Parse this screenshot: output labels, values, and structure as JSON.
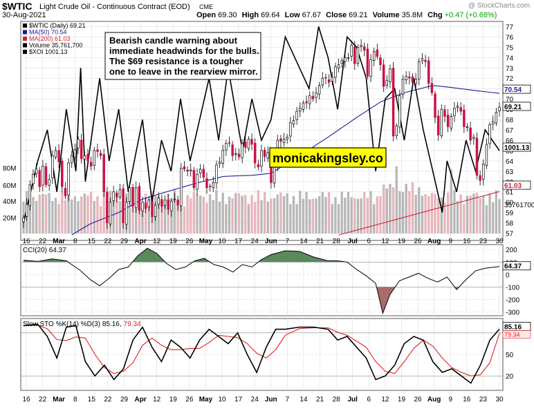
{
  "header": {
    "symbol": "$WTIC",
    "name": "Light Crude Oil - Continuous Contract (EOD)",
    "exchange": "CME",
    "date": "30-Aug-2021",
    "watermark": "@ StockCharts.com",
    "open_label": "Open",
    "open": "69.30",
    "high_label": "High",
    "high": "69.64",
    "low_label": "Low",
    "low": "67.67",
    "close_label": "Close",
    "close": "69.21",
    "volume_label": "Volume",
    "volume": "35.8M",
    "chg_label": "Chg",
    "chg": "+0.47 (+0.68%)",
    "chg_color": "#00a000"
  },
  "legend": [
    {
      "text": "$WTIC (Daily) 69.21",
      "color": "#000000"
    },
    {
      "text": "MA(50) 70.54",
      "color": "#1a1a99"
    },
    {
      "text": "MA(200) 61.03",
      "color": "#cc2233"
    },
    {
      "text": "Volume 35,761,700",
      "color": "#000000"
    },
    {
      "text": "$XOI 1001.13",
      "color": "#000000"
    }
  ],
  "annotation": {
    "lines": [
      "Bearish candle warning about",
      "immediate headwinds for the bulls.",
      "The $69 resistance is a tougher",
      "one to leave in the rearview mirror."
    ]
  },
  "brand_label": "monicakingsley.co",
  "colors": {
    "up": "#ffffff",
    "down": "#cc1144",
    "ma50": "#1a1a99",
    "ma200": "#cc2233",
    "xoi": "#000000",
    "vol_up": "#b8b8b8",
    "vol_down": "#e8b5bc",
    "cci_fill": "#5a8a5a",
    "cci_fill_neg": "#a86a6a",
    "sto_k": "#000000",
    "sto_d": "#dd2222",
    "brand_bg": "#ffff00",
    "grid": "#dddddd"
  },
  "chart_data": [
    {
      "type": "candlestick",
      "title": "$WTIC (Daily) 69.21",
      "y_axis": {
        "ticks": [
          57,
          58,
          59,
          60,
          61,
          62,
          63,
          64,
          65,
          66,
          67,
          68,
          69,
          70,
          71,
          72,
          73,
          74,
          75,
          76,
          77
        ],
        "range": [
          56.3,
          77.5
        ]
      },
      "x_axis": {
        "ticks": [
          "16",
          "22",
          "Mar",
          "8",
          "15",
          "22",
          "29",
          "Apr",
          "12",
          "19",
          "26",
          "May",
          "10",
          "17",
          "24",
          "Jun",
          "7",
          "14",
          "21",
          "28",
          "Jul",
          "6",
          "12",
          "19",
          "26",
          "Aug",
          "9",
          "16",
          "23",
          "30"
        ]
      },
      "last_close_label": "69.21",
      "ma50_label": "70.54",
      "ma200_label": "61.03",
      "xoi_label": "1001.13",
      "volume_axis_labels": [
        "80M",
        "60M",
        "40M",
        "20M"
      ],
      "volume_last_label": "35761700",
      "close": [
        58.5,
        59.8,
        61.7,
        62.7,
        63.2,
        61.5,
        63.5,
        61.7,
        62.2,
        64.5,
        65.0,
        63.9,
        61.5,
        60.6,
        63.8,
        64.5,
        65.1,
        66.1,
        64.2,
        64.5,
        64.0,
        63.5,
        65.0,
        64.9,
        64.5,
        61.0,
        58.0,
        60.0,
        61.0,
        60.5,
        61.2,
        58.0,
        60.0,
        61.4,
        59.6,
        61.4,
        59.2,
        60.0,
        59.4,
        60.2,
        58.6,
        59.7,
        60.4,
        59.6,
        60.2,
        59.3,
        60.1,
        60.3,
        59.7,
        63.3,
        63.2,
        63.1,
        63.0,
        61.4,
        62.7,
        63.2,
        62.4,
        61.4,
        61.5,
        61.9,
        63.6,
        63.9,
        65.0,
        65.7,
        65.7,
        64.5,
        64.7,
        64.4,
        65.7,
        65.3,
        66.1,
        65.6,
        63.8,
        63.4,
        65.0,
        64.4,
        64.8,
        61.9,
        63.5,
        66.0,
        65.9,
        66.1,
        66.3,
        67.7,
        67.9,
        68.8,
        69.1,
        69.6,
        69.6,
        70.3,
        70.0,
        70.6,
        71.3,
        72.0,
        72.0,
        71.6,
        72.1,
        73.1,
        73.3,
        73.7,
        74.0,
        74.0,
        75.2,
        73.4,
        75.0,
        75.2,
        74.7,
        72.2,
        73.8,
        74.6,
        74.1,
        73.3,
        71.2,
        71.8,
        72.9,
        66.4,
        67.4,
        70.3,
        71.9,
        72.2,
        72.0,
        71.6,
        71.9,
        73.6,
        73.9,
        73.6,
        71.5,
        70.6,
        68.2,
        66.5,
        69.0,
        68.3,
        67.3,
        68.3,
        69.1,
        69.3,
        68.8,
        67.3,
        67.3,
        66.0,
        66.3,
        62.6,
        62.1,
        63.7,
        65.6,
        67.5,
        67.8,
        68.7,
        69.2
      ]
    },
    {
      "type": "line",
      "title": "CCI(20) 64.37",
      "y_axis": {
        "ticks": [
          200,
          100,
          0,
          -100,
          -200,
          -300
        ],
        "range": [
          -330,
          240
        ]
      },
      "last_label": "64.37"
    },
    {
      "type": "line",
      "title": "Slow STO %K(14) %D(3) 85.16, 79.34",
      "title_k": "Slow STO %K(14) %D(3) 85.16,",
      "title_d": "79.34",
      "y_axis": {
        "ticks": [
          80,
          50,
          20
        ],
        "range": [
          0,
          100
        ]
      },
      "k_label": "85.16",
      "d_label": "79.34"
    }
  ]
}
